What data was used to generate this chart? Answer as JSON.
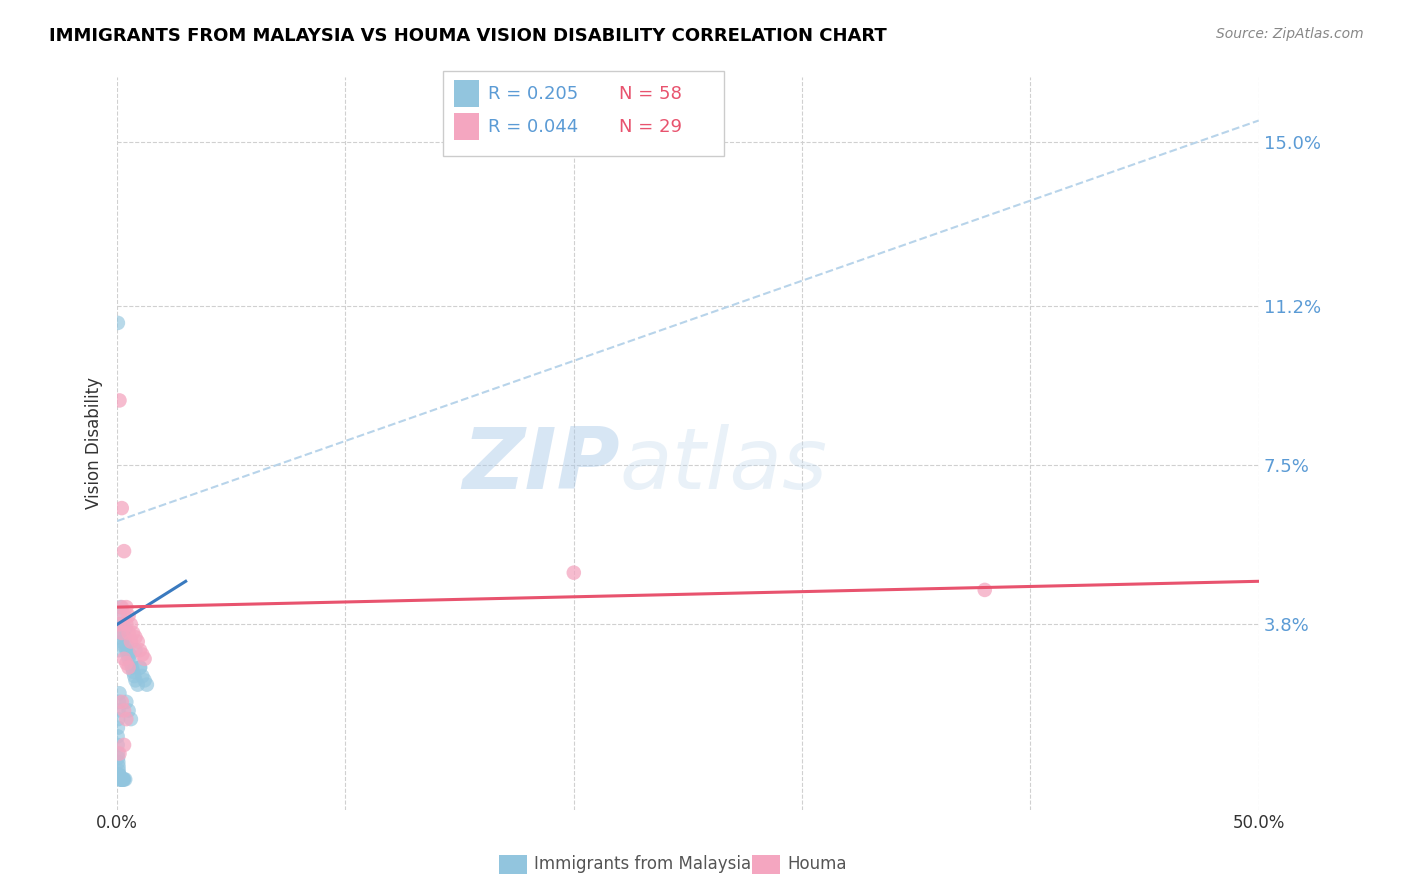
{
  "title": "IMMIGRANTS FROM MALAYSIA VS HOUMA VISION DISABILITY CORRELATION CHART",
  "source": "Source: ZipAtlas.com",
  "xlabel_bottom_blue": "Immigrants from Malaysia",
  "xlabel_bottom_pink": "Houma",
  "ylabel": "Vision Disability",
  "xlim": [
    0.0,
    0.5
  ],
  "ylim": [
    -0.005,
    0.165
  ],
  "xticks": [
    0.0,
    0.1,
    0.2,
    0.3,
    0.4,
    0.5
  ],
  "xtick_labels": [
    "0.0%",
    "",
    "",
    "",
    "",
    "50.0%"
  ],
  "ytick_values": [
    0.038,
    0.075,
    0.112,
    0.15
  ],
  "ytick_labels": [
    "3.8%",
    "7.5%",
    "11.2%",
    "15.0%"
  ],
  "legend_blue_r": "0.205",
  "legend_blue_n": "58",
  "legend_pink_r": "0.044",
  "legend_pink_n": "29",
  "blue_color": "#92c5de",
  "pink_color": "#f4a6c0",
  "blue_line_color": "#3a7abf",
  "pink_line_color": "#e8536e",
  "dashed_line_color": "#b8d4ea",
  "watermark_zip": "ZIP",
  "watermark_atlas": "atlas",
  "blue_scatter_x": [
    0.0003,
    0.0005,
    0.0008,
    0.001,
    0.0012,
    0.0015,
    0.002,
    0.0022,
    0.0025,
    0.003,
    0.0032,
    0.0035,
    0.004,
    0.0042,
    0.0045,
    0.005,
    0.0055,
    0.006,
    0.0065,
    0.007,
    0.0075,
    0.008,
    0.009,
    0.01,
    0.011,
    0.012,
    0.013,
    0.001,
    0.0008,
    0.0006,
    0.0004,
    0.0003,
    0.0002,
    0.0002,
    0.0003,
    0.0004,
    0.0005,
    0.0006,
    0.0007,
    0.0008,
    0.0009,
    0.001,
    0.0012,
    0.0014,
    0.0016,
    0.0018,
    0.002,
    0.0022,
    0.0024,
    0.0026,
    0.0028,
    0.003,
    0.0035,
    0.004,
    0.005,
    0.006,
    0.008,
    0.01
  ],
  "blue_scatter_y": [
    0.108,
    0.035,
    0.032,
    0.038,
    0.04,
    0.042,
    0.036,
    0.034,
    0.038,
    0.033,
    0.035,
    0.037,
    0.032,
    0.033,
    0.031,
    0.03,
    0.031,
    0.029,
    0.028,
    0.027,
    0.026,
    0.025,
    0.024,
    0.028,
    0.026,
    0.025,
    0.024,
    0.022,
    0.02,
    0.018,
    0.016,
    0.014,
    0.012,
    0.01,
    0.008,
    0.007,
    0.006,
    0.005,
    0.004,
    0.003,
    0.003,
    0.003,
    0.002,
    0.002,
    0.002,
    0.002,
    0.002,
    0.002,
    0.002,
    0.002,
    0.002,
    0.002,
    0.002,
    0.02,
    0.018,
    0.016,
    0.032,
    0.028
  ],
  "pink_scatter_x": [
    0.001,
    0.002,
    0.003,
    0.004,
    0.005,
    0.006,
    0.007,
    0.008,
    0.009,
    0.01,
    0.011,
    0.012,
    0.002,
    0.003,
    0.004,
    0.005,
    0.006,
    0.003,
    0.004,
    0.005,
    0.2,
    0.38,
    0.002,
    0.003,
    0.004,
    0.001,
    0.002,
    0.003,
    0.001
  ],
  "pink_scatter_y": [
    0.09,
    0.065,
    0.055,
    0.042,
    0.04,
    0.038,
    0.036,
    0.035,
    0.034,
    0.032,
    0.031,
    0.03,
    0.042,
    0.04,
    0.038,
    0.036,
    0.034,
    0.03,
    0.029,
    0.028,
    0.05,
    0.046,
    0.02,
    0.018,
    0.016,
    0.038,
    0.036,
    0.01,
    0.008
  ],
  "blue_trend_x": [
    0.0,
    0.03
  ],
  "blue_trend_y": [
    0.038,
    0.048
  ],
  "pink_trend_x": [
    0.0,
    0.5
  ],
  "pink_trend_y": [
    0.042,
    0.048
  ],
  "diag_line_x": [
    0.0,
    0.5
  ],
  "diag_line_y": [
    0.062,
    0.155
  ]
}
